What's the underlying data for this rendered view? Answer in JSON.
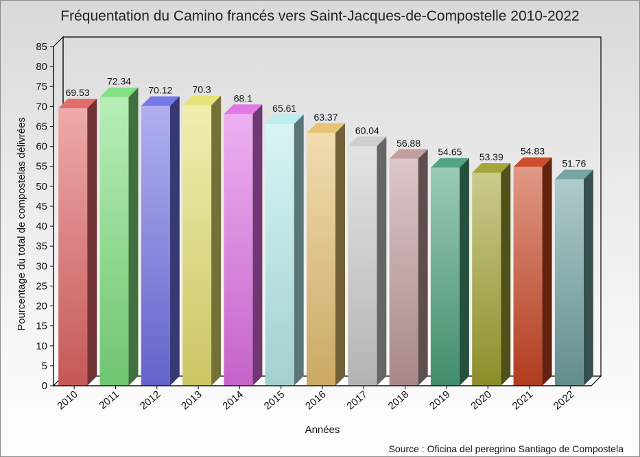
{
  "chart_data": {
    "type": "bar",
    "title": "Fréquentation du Camino francés vers Saint-Jacques-de-Compostelle 2010-2022",
    "xlabel": "Années",
    "ylabel": "Pourcentage du total de compostelas délivrées",
    "ylim": [
      0,
      85
    ],
    "yticks": [
      0,
      5,
      10,
      15,
      20,
      25,
      30,
      35,
      40,
      45,
      50,
      55,
      60,
      65,
      70,
      75,
      80,
      85
    ],
    "grid": false,
    "legend": "none",
    "categories": [
      "2010",
      "2011",
      "2012",
      "2013",
      "2014",
      "2015",
      "2016",
      "2017",
      "2018",
      "2019",
      "2020",
      "2021",
      "2022"
    ],
    "values": [
      69.53,
      72.34,
      70.12,
      70.3,
      68.1,
      65.61,
      63.37,
      60.04,
      56.88,
      54.65,
      53.39,
      54.83,
      51.76
    ],
    "data_labels": [
      "69.53",
      "72.34",
      "70.12",
      "70.3",
      "68.1",
      "65.61",
      "63.37",
      "60.04",
      "56.88",
      "54.65",
      "53.39",
      "54.83",
      "51.76"
    ],
    "colors": [
      "#e06464",
      "#7ee07e",
      "#7070e6",
      "#e6e070",
      "#e070e6",
      "#b8ecec",
      "#e6c070",
      "#cccccc",
      "#c0999c",
      "#4aa07a",
      "#a0a030",
      "#c84422",
      "#70a0a0"
    ],
    "source": "Source : Oficina del peregrino Santiago de Compostela"
  }
}
